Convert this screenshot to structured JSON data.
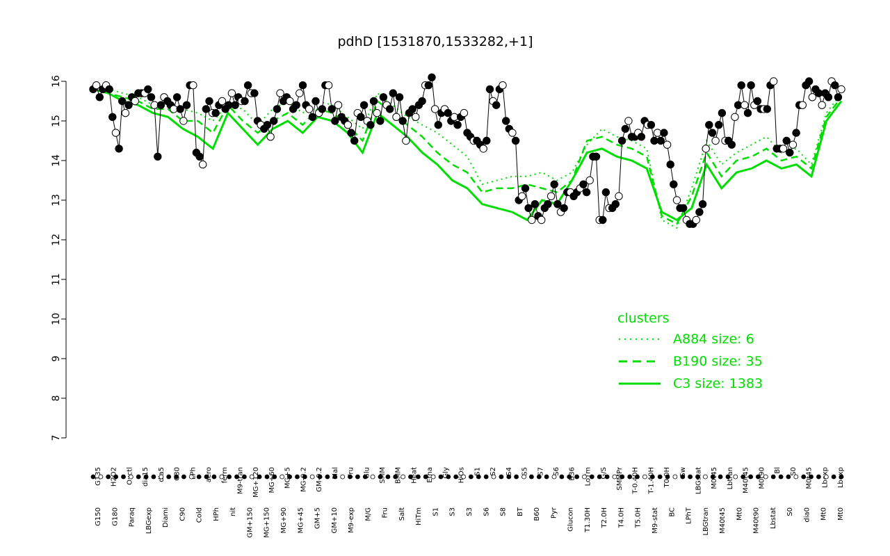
{
  "chart_data": {
    "type": "line",
    "title": "pdhD [1531870,1533282,+1]",
    "xlabel": "",
    "ylabel": "",
    "ylim": [
      7,
      16.3
    ],
    "yticks": [
      7,
      8,
      9,
      10,
      11,
      12,
      13,
      14,
      15,
      16
    ],
    "grid": false,
    "colors": {
      "data": "#000000",
      "cluster": "#00dd00",
      "open_marker": "#ffffff"
    },
    "xtick_labels_upper": [
      "G135",
      "H2O2",
      "Oxctl",
      "dia15",
      "dia5",
      "C30",
      "LPh",
      "aero",
      "ferm",
      "M9-tran",
      "MG+120",
      "MG+60",
      "MG+5",
      "MG-0.2",
      "GM-0.2",
      "Mal",
      "Fru",
      "Glu",
      "SMM",
      "BMM",
      "Heat",
      "Etha",
      "Gly",
      "HiOs",
      "S1",
      "S2",
      "S4",
      "S5",
      "S7",
      "S6",
      "B36",
      "LoTm",
      "G/S",
      "SMMPr",
      "T-0.40H",
      "T-1.40H",
      "T0.0H",
      "Sw",
      "LBGstat",
      "M0t45",
      "Lbtran",
      "M40t45",
      "M0t90",
      "Bl",
      "S0",
      "M0t45",
      "Lbexp",
      "Lbexp"
    ],
    "xtick_labels_lower": [
      "G150",
      "G180",
      "Paraq",
      "LBGexp",
      "Diami",
      "C90",
      "Cold",
      "HPh",
      "nit",
      "GM+150",
      "MG+150",
      "MG+90",
      "MG+45",
      "GM+5",
      "GM+10",
      "M9-exp",
      "M/G",
      "Fru",
      "Salt",
      "HiTm",
      "S1",
      "S3",
      "S3",
      "S6",
      "S8",
      "BT",
      "B60",
      "Pyr",
      "Glucon",
      "T1.30H",
      "T2.0H",
      "T4.0H",
      "T5.0H",
      "M9-stat",
      "BC",
      "LPhT",
      "LBGtran",
      "M40t45",
      "Mt0",
      "M40t90",
      "Lbstat",
      "S0",
      "dia0",
      "Mt0",
      "Mt0"
    ],
    "series_points": [
      [
        15.8,
        15.9,
        15.6,
        15.8,
        15.9,
        15.8,
        15.1,
        14.7,
        14.3,
        15.5,
        15.2,
        15.4,
        15.6,
        15.5,
        15.7,
        15.7,
        15.7,
        15.8,
        15.6,
        15.4,
        14.1,
        15.4,
        15.6,
        15.5,
        15.4,
        15.3,
        15.6,
        15.3,
        15.0,
        15.4,
        15.9,
        15.9,
        14.2,
        14.1,
        13.9,
        15.3,
        15.5,
        15.2,
        15.2,
        15.4,
        15.5,
        15.3,
        15.4,
        15.7,
        15.4,
        15.6,
        15.5,
        15.5,
        15.9,
        15.7,
        15.7,
        15.0,
        14.9,
        14.8,
        14.9,
        14.6,
        15.0,
        15.3,
        15.7,
        15.5,
        15.6,
        15.5,
        15.3,
        15.4,
        15.7,
        15.9,
        15.4,
        15.3,
        15.1,
        15.5,
        15.2,
        15.3,
        15.9,
        15.9,
        15.3,
        15.0,
        15.4,
        15.1,
        15.0,
        14.9,
        14.7,
        14.5,
        15.2,
        15.1,
        15.4,
        15.0,
        14.9,
        15.5,
        15.2,
        15.0,
        15.6,
        15.4,
        15.3,
        15.7,
        15.1,
        15.6,
        15.0,
        14.5,
        15.2,
        15.3,
        15.1,
        15.4,
        15.5,
        15.9,
        15.9,
        16.1,
        15.3,
        14.9,
        15.2,
        15.3,
        15.2,
        15.0,
        15.1,
        14.9,
        15.1,
        15.2,
        14.7,
        14.6,
        14.5,
        14.5,
        14.4,
        14.3,
        14.5,
        15.8,
        15.5,
        15.4,
        15.8,
        15.9,
        15.0,
        14.8,
        14.7,
        14.5,
        13.0,
        13.1,
        13.3,
        12.8,
        12.5,
        12.9,
        12.6,
        12.5,
        12.8,
        12.9,
        13.1,
        13.4,
        12.9,
        12.7,
        12.8,
        13.2,
        13.2,
        13.1,
        13.2,
        13.3,
        13.4,
        13.2,
        13.5,
        14.1,
        14.1,
        12.5,
        12.5,
        13.2,
        12.8,
        12.8,
        12.9,
        13.1,
        14.5,
        14.8,
        15.0,
        14.6,
        14.6,
        14.7,
        14.6,
        15.0,
        14.9,
        14.9,
        14.5,
        14.7,
        14.5,
        14.7,
        14.4,
        13.9,
        13.4,
        13.0,
        12.8,
        12.8,
        12.5,
        12.4,
        12.4,
        12.5,
        12.7,
        12.9,
        14.3,
        14.9,
        14.7,
        14.5,
        14.9,
        15.2,
        14.5,
        14.5,
        14.4,
        15.1,
        15.4,
        15.9,
        15.4,
        15.2,
        15.9,
        15.4,
        15.5,
        15.3,
        15.3,
        15.3,
        15.9,
        16.0,
        14.3,
        14.3,
        14.3,
        14.5,
        14.2,
        14.4,
        14.7,
        15.4,
        15.4,
        15.9,
        16.0,
        15.6,
        15.8,
        15.7,
        15.4,
        15.7,
        15.6,
        16.0,
        15.9,
        15.6,
        15.8
      ]
    ],
    "cluster_series": [
      {
        "name": "A884 size: 6",
        "style": "dotted",
        "values": [
          15.9,
          15.8,
          15.7,
          15.6,
          15.4,
          15.4,
          15.3,
          15.2,
          15.0,
          15.4,
          15.3,
          14.9,
          15.3,
          15.5,
          15.2,
          15.5,
          15.4,
          15.1,
          14.8,
          15.7,
          15.4,
          15.1,
          14.9,
          14.7,
          14.4,
          14.1,
          13.4,
          13.5,
          13.6,
          13.6,
          13.7,
          13.5,
          13.7,
          14.4,
          14.8,
          14.6,
          14.5,
          14.3,
          12.5,
          12.3,
          13.3,
          14.5,
          13.9,
          14.2,
          14.4,
          14.6,
          14.2,
          14.3,
          13.9,
          15.2,
          15.7
        ]
      },
      {
        "name": "B190 size: 35",
        "style": "dashed",
        "values": [
          15.8,
          15.7,
          15.6,
          15.5,
          15.3,
          15.3,
          15.0,
          15.0,
          14.7,
          15.4,
          15.0,
          14.7,
          15.0,
          15.2,
          14.9,
          15.3,
          15.2,
          14.9,
          14.5,
          15.5,
          15.2,
          14.9,
          14.6,
          14.2,
          13.9,
          13.7,
          13.2,
          13.3,
          13.3,
          13.4,
          13.3,
          13.2,
          13.5,
          14.5,
          14.6,
          14.4,
          14.3,
          14.1,
          12.6,
          12.4,
          13.1,
          14.2,
          13.6,
          14.0,
          14.1,
          14.3,
          14.0,
          14.1,
          13.8,
          15.1,
          15.6
        ]
      },
      {
        "name": "C3 size: 1383",
        "style": "solid",
        "values": [
          15.8,
          15.7,
          15.5,
          15.4,
          15.2,
          15.1,
          14.8,
          14.6,
          14.3,
          15.2,
          14.8,
          14.4,
          14.8,
          15.0,
          14.7,
          15.1,
          15.0,
          14.7,
          14.2,
          15.2,
          14.9,
          14.6,
          14.2,
          13.9,
          13.5,
          13.3,
          12.9,
          12.8,
          12.7,
          12.5,
          13.0,
          12.9,
          13.5,
          14.2,
          14.3,
          14.1,
          14.0,
          13.8,
          12.7,
          12.5,
          12.8,
          13.9,
          13.3,
          13.7,
          13.8,
          14.0,
          13.8,
          13.9,
          13.6,
          15.0,
          15.5
        ]
      }
    ],
    "legend": {
      "title": "clusters",
      "entries": [
        "A884 size: 6",
        "B190 size: 35",
        "C3 size: 1383"
      ],
      "position": "right"
    }
  }
}
